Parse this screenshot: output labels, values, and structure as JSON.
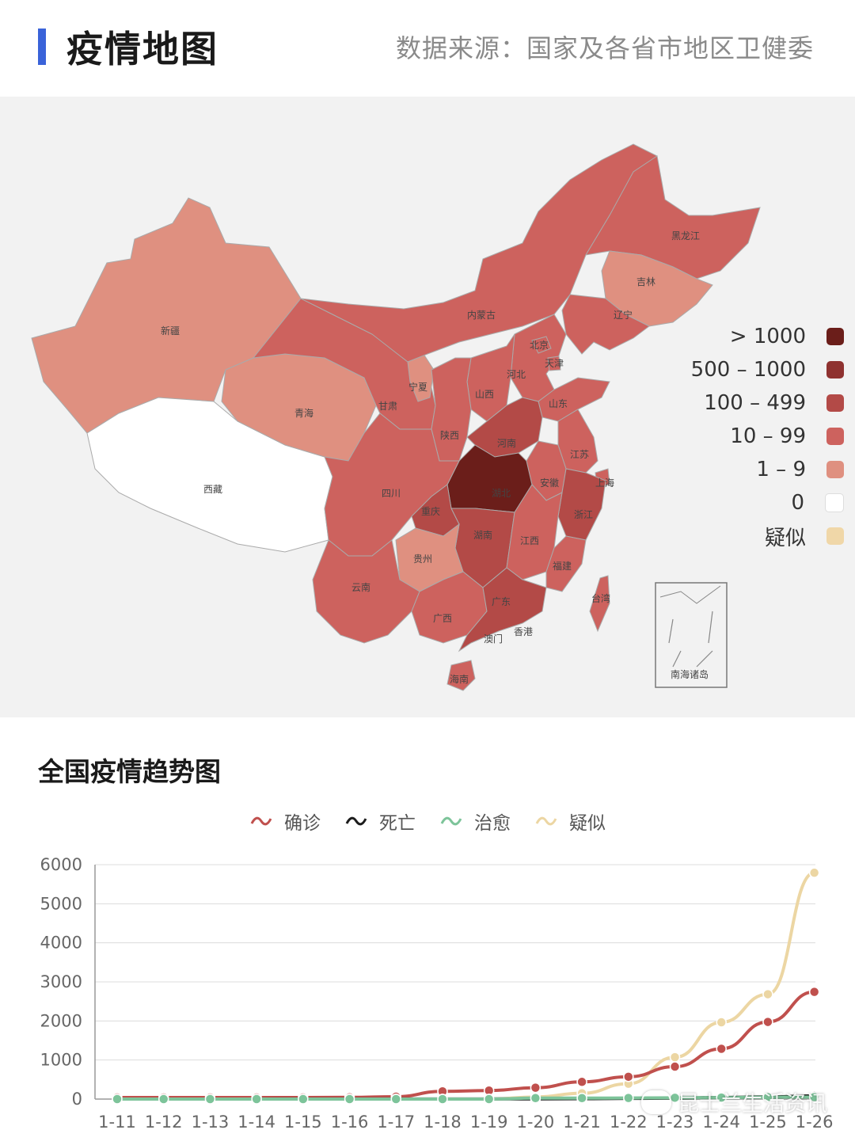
{
  "header": {
    "title": "疫情地图",
    "source": "数据来源：国家及各省市地区卫健委"
  },
  "map": {
    "legend": [
      {
        "label": "> 1000",
        "color": "#6b1e1a"
      },
      {
        "label": "500 – 1000",
        "color": "#8f3230"
      },
      {
        "label": "100 – 499",
        "color": "#b34a47"
      },
      {
        "label": "10 – 99",
        "color": "#cd625e"
      },
      {
        "label": "1 – 9",
        "color": "#df9080"
      },
      {
        "label": "0",
        "color": "#ffffff"
      },
      {
        "label": "疑似",
        "color": "#f0d7a8"
      }
    ],
    "provinces": {
      "xinjiang": "新疆",
      "xizang": "西藏",
      "qinghai": "青海",
      "gansu": "甘肃",
      "ningxia": "宁夏",
      "neimenggu": "内蒙古",
      "heilongjiang": "黑龙江",
      "jilin": "吉林",
      "liaoning": "辽宁",
      "beijing": "北京",
      "tianjin": "天津",
      "hebei": "河北",
      "shanxi": "山西",
      "shandong": "山东",
      "shaanxi": "陕西",
      "henan": "河南",
      "jiangsu": "江苏",
      "shanghai": "上海",
      "anhui": "安徽",
      "hubei": "湖北",
      "sichuan": "四川",
      "chongqing": "重庆",
      "zhejiang": "浙江",
      "hunan": "湖南",
      "jiangxi": "江西",
      "guizhou": "贵州",
      "yunnan": "云南",
      "guangxi": "广西",
      "guangdong": "广东",
      "fujian": "福建",
      "taiwan": "台湾",
      "hongkong": "香港",
      "macau": "澳门",
      "hainan": "海南",
      "nanhai": "南海诸岛"
    }
  },
  "trend": {
    "title": "全国疫情趋势图",
    "watermark": "昆士兰生活资讯"
  },
  "chart_data": {
    "type": "line",
    "categories": [
      "1-11",
      "1-12",
      "1-13",
      "1-14",
      "1-15",
      "1-16",
      "1-17",
      "1-18",
      "1-19",
      "1-20",
      "1-21",
      "1-22",
      "1-23",
      "1-24",
      "1-25",
      "1-26"
    ],
    "ylim": [
      0,
      6000
    ],
    "yticks": [
      0,
      1000,
      2000,
      3000,
      4000,
      5000,
      6000
    ],
    "grid": true,
    "legend_position": "top-center",
    "series": [
      {
        "name": "确诊",
        "color": "#c0504d",
        "values": [
          41,
          41,
          41,
          41,
          41,
          45,
          62,
          198,
          218,
          291,
          440,
          571,
          830,
          1287,
          1975,
          2744
        ]
      },
      {
        "name": "死亡",
        "color": "#1c1c1c",
        "values": [
          1,
          1,
          1,
          1,
          2,
          2,
          2,
          3,
          3,
          6,
          9,
          17,
          25,
          41,
          56,
          80
        ]
      },
      {
        "name": "治愈",
        "color": "#7dc49a",
        "values": [
          0,
          0,
          0,
          0,
          0,
          0,
          0,
          0,
          0,
          25,
          25,
          28,
          34,
          38,
          49,
          51
        ]
      },
      {
        "name": "疑似",
        "color": "#ecd6a3",
        "values": [
          null,
          null,
          null,
          null,
          null,
          null,
          null,
          null,
          0,
          54,
          149,
          393,
          1072,
          1965,
          2684,
          5794
        ]
      }
    ]
  }
}
